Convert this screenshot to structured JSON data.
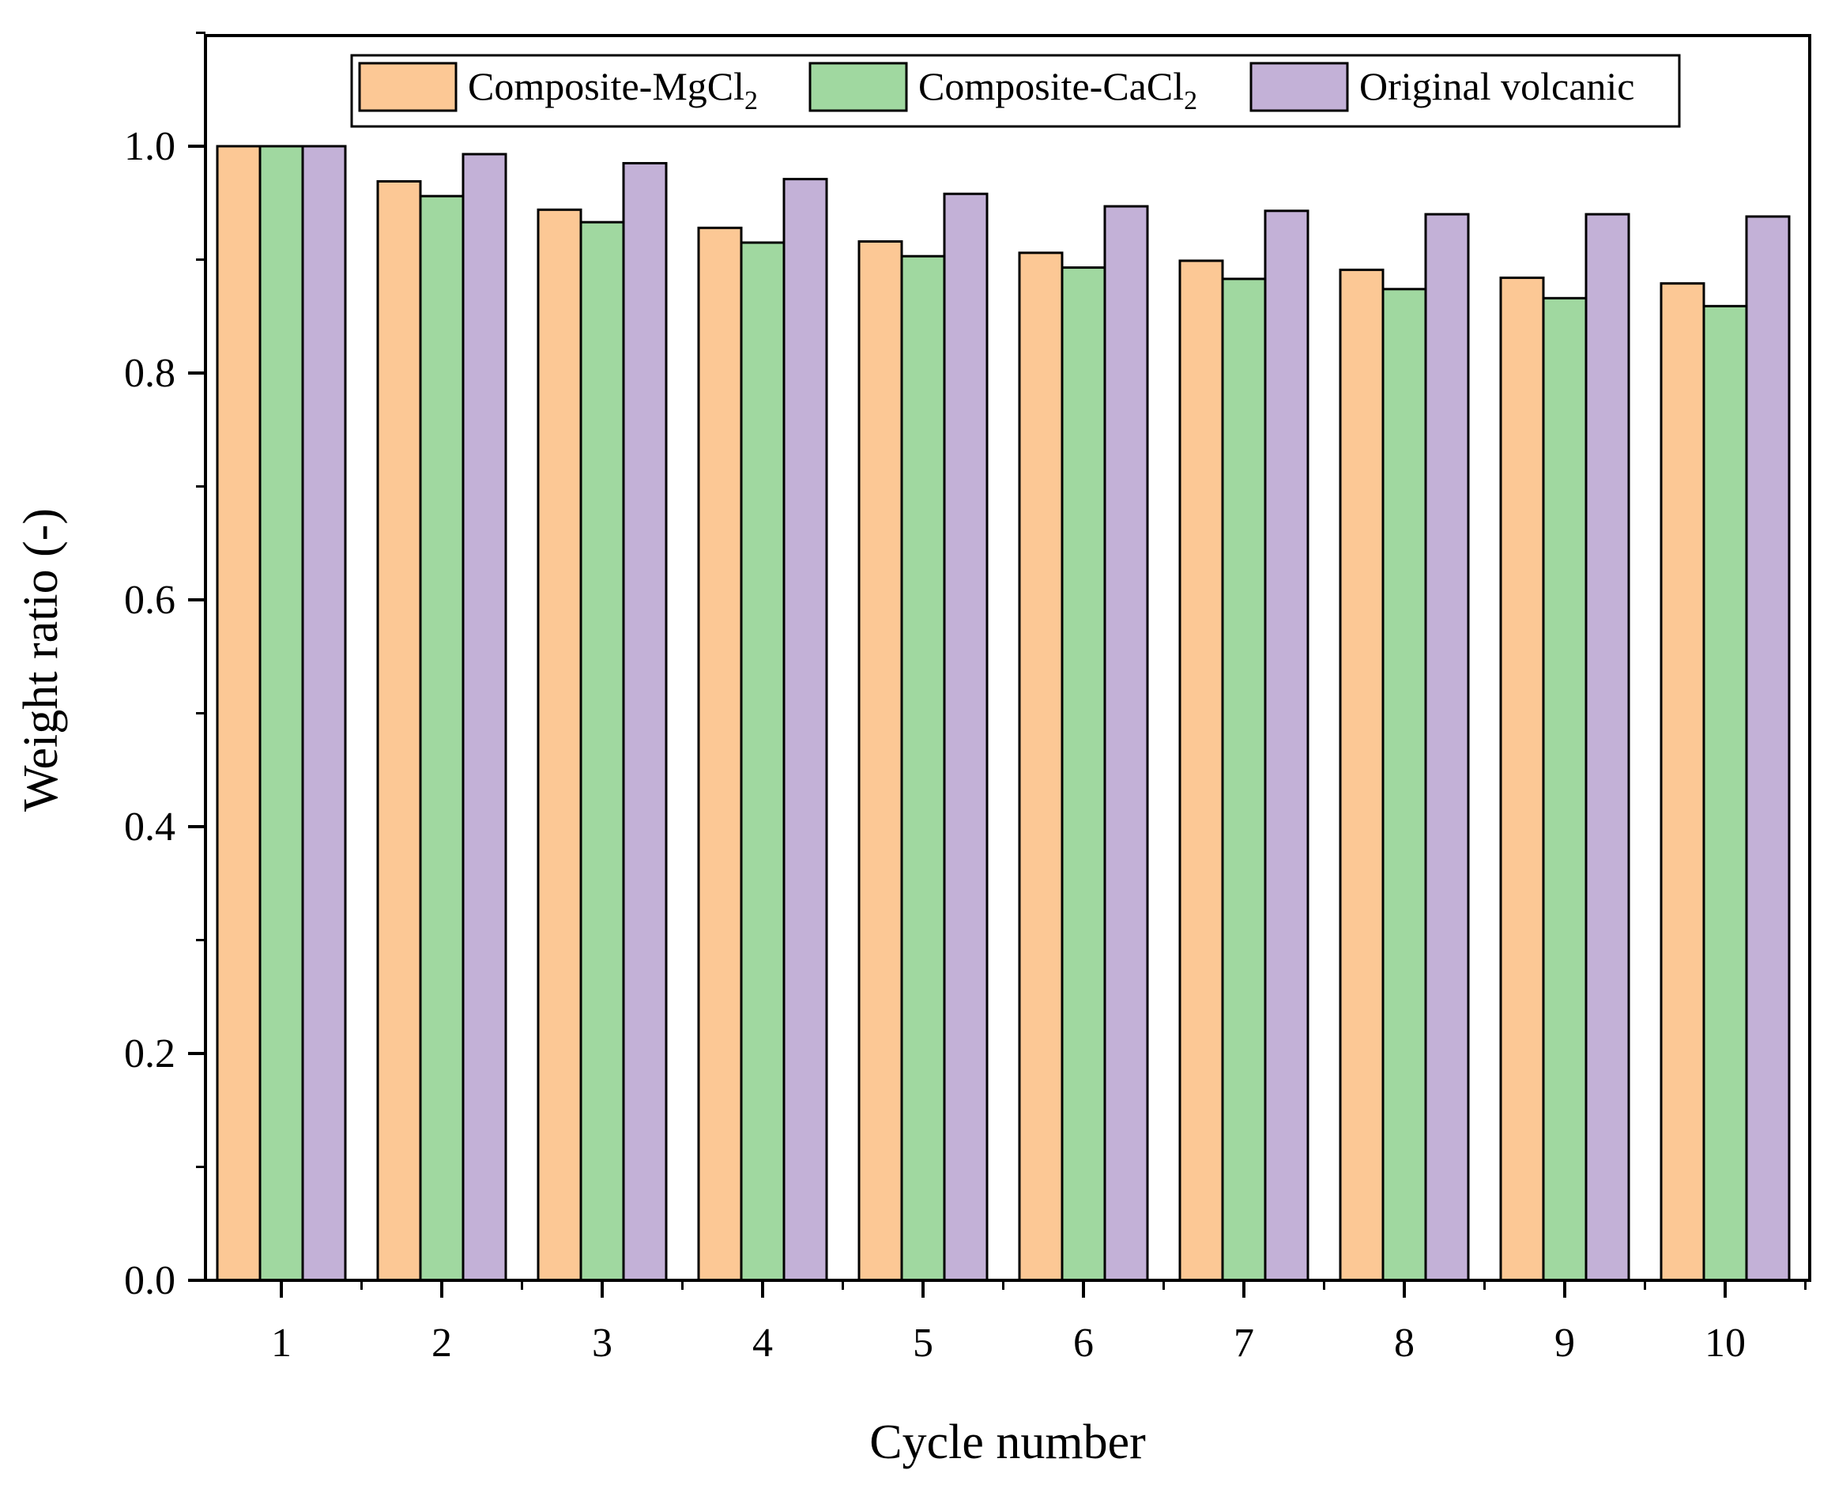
{
  "chart_data": {
    "type": "bar",
    "title": "",
    "xlabel": "Cycle number",
    "ylabel": "Weight ratio (-)",
    "ylim": [
      0,
      1.1
    ],
    "yticks": [
      "0.0",
      "0.2",
      "0.4",
      "0.6",
      "0.8",
      "1.0"
    ],
    "ytick_values": [
      0,
      0.2,
      0.4,
      0.6,
      0.8,
      1.0
    ],
    "categories": [
      "1",
      "2",
      "3",
      "4",
      "5",
      "6",
      "7",
      "8",
      "9",
      "10"
    ],
    "legend_position": "top",
    "series": [
      {
        "name": "Composite-MgCl",
        "subscript": "2",
        "color": "#FCC895",
        "values": [
          1.0,
          0.969,
          0.944,
          0.928,
          0.916,
          0.906,
          0.899,
          0.891,
          0.884,
          0.879
        ]
      },
      {
        "name": "Composite-CaCl",
        "subscript": "2",
        "color": "#A0D8A0",
        "values": [
          1.0,
          0.956,
          0.933,
          0.915,
          0.903,
          0.893,
          0.883,
          0.874,
          0.866,
          0.859
        ]
      },
      {
        "name": "Original volcanic",
        "subscript": "",
        "color": "#C3B1D7",
        "values": [
          1.0,
          0.993,
          0.985,
          0.971,
          0.958,
          0.947,
          0.943,
          0.94,
          0.94,
          0.938
        ]
      }
    ]
  }
}
